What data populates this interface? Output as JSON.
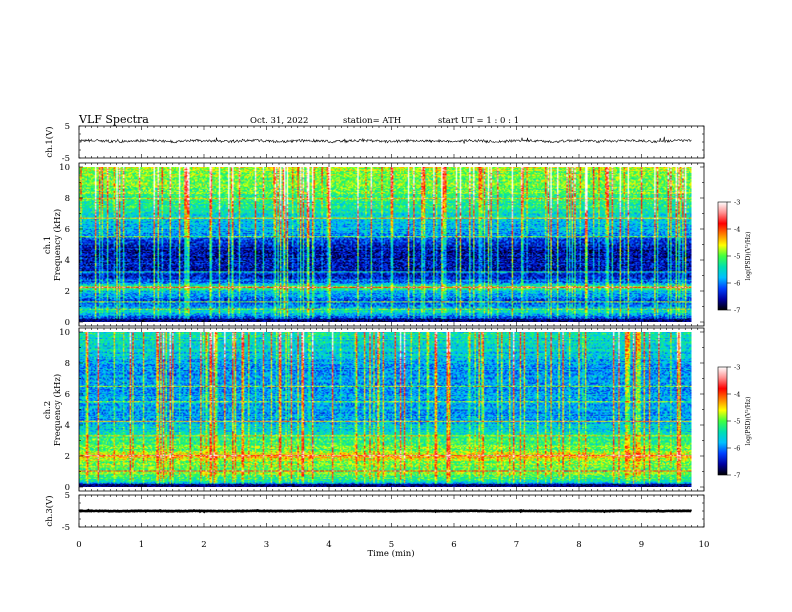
{
  "header": {
    "title": "VLF  Spectra",
    "date": "Oct. 31, 2022",
    "station": "station= ATH",
    "start": "start  UT  =   1  : 0   : 1"
  },
  "chart_data": [
    {
      "type": "line",
      "name": "ch.1 waveform",
      "ylabel": "ch.1(V)",
      "yticks": [
        "5",
        "-5"
      ],
      "ylim": [
        -5,
        5
      ],
      "xlim": [
        0,
        10
      ],
      "baseline_v": 0.3,
      "noise_amplitude_v": 0.8,
      "end_time_min": 9.8
    },
    {
      "type": "heatmap",
      "name": "ch.1 spectrogram",
      "ylabel": "Frequency  (kHz)",
      "channel_label": "ch.1",
      "yticks": [
        "0",
        "2",
        "4",
        "6",
        "8",
        "10"
      ],
      "ylim": [
        0,
        10
      ],
      "xlim": [
        0,
        10
      ],
      "end_time_min": 9.8,
      "colormap": [
        "#000000",
        "#0000a0",
        "#0040ff",
        "#00c0ff",
        "#00e0b0",
        "#40ff40",
        "#ffff00",
        "#ff8000",
        "#ff0000",
        "#ff9090",
        "#ffffff"
      ],
      "colorbar": {
        "label": "log(PSD)(V²/Hz)",
        "ticks": [
          "-3",
          "-4",
          "-5",
          "-6",
          "-7"
        ],
        "range": [
          -7,
          -3
        ]
      },
      "level_profile_khz": [
        [
          0,
          -6.9
        ],
        [
          0.3,
          -6.2
        ],
        [
          0.7,
          -5.4
        ],
        [
          1.0,
          -6.0
        ],
        [
          1.5,
          -6.1
        ],
        [
          2.0,
          -5.6
        ],
        [
          2.2,
          -4.8
        ],
        [
          2.5,
          -6.0
        ],
        [
          3.0,
          -6.3
        ],
        [
          3.5,
          -6.5
        ],
        [
          4.2,
          -6.6
        ],
        [
          5.0,
          -6.4
        ],
        [
          5.6,
          -5.9
        ],
        [
          6.5,
          -5.6
        ],
        [
          7.5,
          -5.3
        ],
        [
          8.5,
          -5.0
        ],
        [
          9.5,
          -4.9
        ],
        [
          10,
          -4.8
        ]
      ],
      "tones_khz": [
        0.8,
        1.3,
        2.2,
        3.2,
        5.5,
        6.7,
        8.0
      ]
    },
    {
      "type": "heatmap",
      "name": "ch.2 spectrogram",
      "ylabel": "Frequency  (kHz)",
      "channel_label": "ch.2",
      "yticks": [
        "0",
        "2",
        "4",
        "6",
        "8",
        "10"
      ],
      "ylim": [
        0,
        10
      ],
      "xlim": [
        0,
        10
      ],
      "end_time_min": 9.8,
      "colormap": [
        "#000000",
        "#0000a0",
        "#0040ff",
        "#00c0ff",
        "#00e0b0",
        "#40ff40",
        "#ffff00",
        "#ff8000",
        "#ff0000",
        "#ff9090",
        "#ffffff"
      ],
      "colorbar": {
        "label": "log(PSD)(V²/Hz)",
        "ticks": [
          "-3",
          "-4",
          "-5",
          "-6",
          "-7"
        ],
        "range": [
          -7,
          -3
        ]
      },
      "level_profile_khz": [
        [
          0,
          -6.9
        ],
        [
          0.3,
          -5.6
        ],
        [
          0.8,
          -4.9
        ],
        [
          1.5,
          -5.0
        ],
        [
          2.0,
          -4.4
        ],
        [
          2.3,
          -5.0
        ],
        [
          3.0,
          -5.2
        ],
        [
          3.5,
          -5.5
        ],
        [
          4.5,
          -5.9
        ],
        [
          5.5,
          -5.8
        ],
        [
          6.5,
          -5.9
        ],
        [
          7.5,
          -5.9
        ],
        [
          8.5,
          -5.7
        ],
        [
          9.5,
          -5.5
        ],
        [
          10,
          -5.4
        ]
      ],
      "tones_khz": [
        1.0,
        2.0,
        3.3,
        4.2,
        5.5,
        6.5
      ]
    },
    {
      "type": "line",
      "name": "ch.3 waveform",
      "ylabel": "ch.3(V)",
      "yticks": [
        "5",
        "-5"
      ],
      "ylim": [
        -5,
        5
      ],
      "xlim": [
        0,
        10
      ],
      "baseline_v": 0.0,
      "noise_amplitude_v": 0.15,
      "end_time_min": 9.8
    }
  ],
  "x_axis": {
    "label": "Time  (min)",
    "ticks": [
      "0",
      "1",
      "2",
      "3",
      "4",
      "5",
      "6",
      "7",
      "8",
      "9",
      "10"
    ],
    "range": [
      0,
      10
    ]
  }
}
